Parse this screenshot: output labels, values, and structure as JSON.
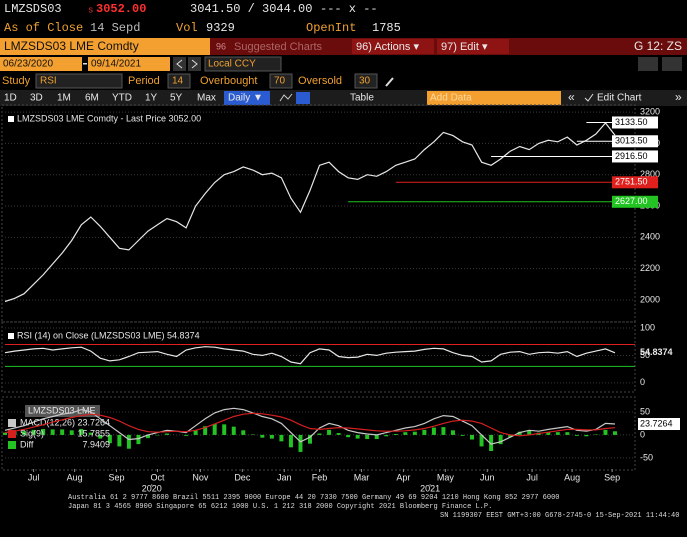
{
  "header": {
    "ticker": "LMZSDS03",
    "settle_flag": "s",
    "price": "3052.00",
    "bid_ask": "3041.50 / 3044.00",
    "change": "--- x --",
    "as_of": "As of Close",
    "date": "14 Sepd",
    "vol_label": "Vol",
    "vol": "9329",
    "oi_label": "OpenInt",
    "oi": "1785"
  },
  "menu": {
    "security": "LMZSDS03 LME Comdty",
    "suggested_num": "96",
    "suggested": "Suggested Charts",
    "actions": "96) Actions ▾",
    "edit": "97) Edit ▾",
    "page": "G 12: ZS"
  },
  "range": {
    "start": "06/23/2020",
    "end": "09/14/2021",
    "currency": "Local CCY"
  },
  "study": {
    "label": "Study",
    "name": "RSI",
    "period_label": "Period",
    "period": 14,
    "overbought_label": "Overbought",
    "overbought": 70,
    "oversold_label": "Oversold",
    "oversold": 30
  },
  "toolbar": {
    "periods": [
      "1D",
      "3D",
      "1M",
      "6M",
      "YTD",
      "1Y",
      "5Y",
      "Max"
    ],
    "frequency": "Daily ▼",
    "table": "Table",
    "add_data": "Add Data",
    "edit_chart": "Edit Chart"
  },
  "chart_data": [
    {
      "type": "line",
      "title": "LMZSDS03 LME Comdty - Last Price 3052.00",
      "color": "#e6e6e6",
      "values": [
        1990,
        2010,
        2040,
        2100,
        2160,
        2230,
        2300,
        2380,
        2480,
        2530,
        2470,
        2400,
        2330,
        2320,
        2380,
        2440,
        2480,
        2520,
        2500,
        2460,
        2600,
        2680,
        2750,
        2800,
        2820,
        2850,
        2830,
        2800,
        2810,
        2780,
        2650,
        2560,
        2700,
        2860,
        2880,
        2820,
        2780,
        2770,
        2800,
        2790,
        2820,
        2860,
        2880,
        2900,
        2960,
        3010,
        3070,
        3050,
        3010,
        2990,
        2880,
        2860,
        2900,
        2950,
        2980,
        2960,
        3000,
        3020,
        3010,
        3040,
        2990,
        3020,
        3060,
        3130,
        3052
      ],
      "ylim": [
        1872,
        3226
      ],
      "yticks": [
        2000,
        2200,
        2400,
        2600,
        2800,
        3000,
        3200
      ],
      "grid": true,
      "levels": [
        {
          "value": 3133.5,
          "label": "3133.50",
          "color": "#ffffff"
        },
        {
          "value": 3013.5,
          "label": "3013.50",
          "color": "#ffffff"
        },
        {
          "value": 2916.5,
          "label": "2916.50",
          "color": "#ffffff"
        },
        {
          "value": 2751.5,
          "label": "2751.50",
          "color": "#e0201c"
        },
        {
          "value": 2627,
          "label": "2627.00",
          "color": "#22c322"
        }
      ]
    },
    {
      "type": "line",
      "title": "RSI (14) on Close (LMZSDS03 LME) 54.8374",
      "color": "#e6e6e6",
      "values": [
        55,
        58,
        60,
        62,
        63,
        60,
        62,
        64,
        65,
        58,
        45,
        40,
        42,
        48,
        55,
        56,
        57,
        52,
        48,
        60,
        64,
        66,
        65,
        62,
        60,
        58,
        52,
        50,
        54,
        48,
        38,
        35,
        55,
        62,
        60,
        48,
        46,
        47,
        52,
        50,
        54,
        56,
        57,
        58,
        61,
        63,
        62,
        55,
        50,
        48,
        38,
        40,
        52,
        56,
        57,
        52,
        55,
        56,
        54,
        57,
        48,
        54,
        58,
        62,
        54.8374
      ],
      "ylim": [
        -13,
        105.5
      ],
      "yticks": [
        0,
        50,
        100
      ],
      "grid": true,
      "overbought_color": "#e0201c",
      "oversold_color": "#22c322"
    },
    {
      "type": "line",
      "title": "LMZSDS03 LME",
      "ylim": [
        -72,
        76
      ],
      "yticks": [
        -50,
        0,
        50
      ],
      "grid": true,
      "series": [
        {
          "name": "MACD(12,26)",
          "color": "#c8c8c8",
          "values": [
            10,
            15,
            20,
            28,
            35,
            40,
            45,
            48,
            55,
            50,
            35,
            20,
            5,
            -10,
            -8,
            0,
            5,
            10,
            8,
            5,
            20,
            35,
            48,
            55,
            58,
            55,
            48,
            40,
            35,
            25,
            5,
            -15,
            -5,
            15,
            25,
            20,
            10,
            5,
            2,
            0,
            5,
            10,
            15,
            18,
            25,
            35,
            42,
            40,
            30,
            20,
            0,
            -20,
            -15,
            -5,
            5,
            10,
            8,
            12,
            15,
            18,
            10,
            8,
            12,
            25,
            23.7264
          ]
        },
        {
          "name": "Sig(9)",
          "color": "#d42020",
          "values": [
            5,
            8,
            12,
            17,
            22,
            28,
            33,
            38,
            42,
            45,
            43,
            38,
            30,
            20,
            12,
            7,
            6,
            7,
            8,
            7,
            10,
            16,
            24,
            32,
            40,
            45,
            47,
            46,
            43,
            39,
            32,
            22,
            14,
            12,
            14,
            16,
            15,
            13,
            11,
            9,
            8,
            8,
            9,
            11,
            14,
            19,
            25,
            30,
            32,
            30,
            25,
            15,
            5,
            0,
            -2,
            0,
            3,
            6,
            9,
            12,
            12,
            11,
            11,
            14,
            15.7855
          ]
        },
        {
          "name": "Diff",
          "color": "#22c322",
          "style": "bar",
          "values": [
            5,
            7,
            8,
            11,
            13,
            12,
            12,
            10,
            13,
            5,
            -8,
            -18,
            -25,
            -30,
            -20,
            -7,
            -1,
            3,
            0,
            -2,
            10,
            19,
            24,
            23,
            18,
            10,
            1,
            -6,
            -8,
            -14,
            -27,
            -37,
            -19,
            3,
            11,
            4,
            -5,
            -8,
            -9,
            -9,
            -3,
            2,
            6,
            7,
            11,
            16,
            17,
            10,
            -2,
            -10,
            -25,
            -35,
            -20,
            -5,
            7,
            10,
            5,
            6,
            6,
            6,
            -2,
            -3,
            1,
            11,
            7.9409
          ]
        }
      ],
      "xticks": [
        {
          "value": 3,
          "label": "Jul"
        },
        {
          "value": 7.3,
          "label": "Aug"
        },
        {
          "value": 11.7,
          "label": "Sep"
        },
        {
          "value": 16,
          "label": "Oct"
        },
        {
          "value": 20.5,
          "label": "Nov"
        },
        {
          "value": 24.9,
          "label": "Dec"
        },
        {
          "value": 29.3,
          "label": "Jan"
        },
        {
          "value": 33,
          "label": "Feb"
        },
        {
          "value": 37.4,
          "label": "Mar"
        },
        {
          "value": 41.8,
          "label": "Apr"
        },
        {
          "value": 46.2,
          "label": "May"
        },
        {
          "value": 50.6,
          "label": "Jun"
        },
        {
          "value": 55.3,
          "label": "Jul"
        },
        {
          "value": 59.5,
          "label": "Aug"
        },
        {
          "value": 63.7,
          "label": "Sep"
        }
      ],
      "year_ticks": [
        {
          "value": 15.4,
          "label": "2020"
        },
        {
          "value": 44.6,
          "label": "2021"
        }
      ]
    }
  ],
  "footer": [
    "Australia 61 2 9777 8600 Brazil 5511 2395 9000 Europe 44 20 7330 7500 Germany 49 69 9204 1210 Hong Kong 852 2977 6000",
    "Japan 81 3 4565 8900        Singapore 65 6212 1000        U.S. 1 212 318 2000        Copyright 2021 Bloomberg Finance L.P.",
    "SN 1199307 EEST GMT+3:00 G678-2745-0 15-Sep-2021 11:44:40"
  ]
}
